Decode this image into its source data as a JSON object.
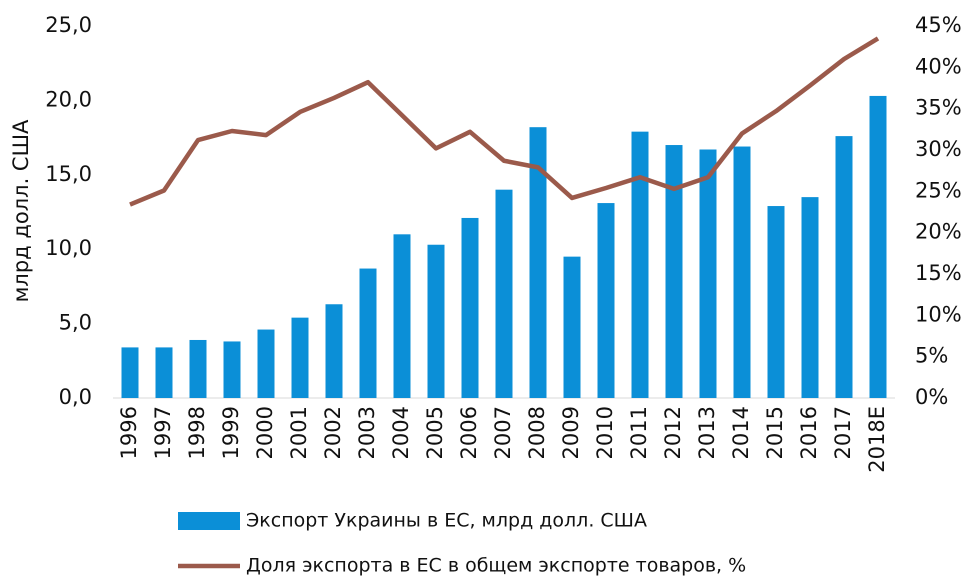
{
  "chart_data": {
    "type": "bar",
    "ylabel": "млрд долл. США",
    "categories": [
      "1996",
      "1997",
      "1998",
      "1999",
      "2000",
      "2001",
      "2002",
      "2003",
      "2004",
      "2005",
      "2006",
      "2007",
      "2008",
      "2009",
      "2010",
      "2011",
      "2012",
      "2013",
      "2014",
      "2015",
      "2016",
      "2017",
      "2018E"
    ],
    "series": [
      {
        "name": "Экспорт Украины в ЕС, млрд долл. США",
        "type": "bar",
        "color": "#0b8fd7",
        "values": [
          3.4,
          3.4,
          3.9,
          3.8,
          4.6,
          5.4,
          6.3,
          8.7,
          11.0,
          10.3,
          12.1,
          14.0,
          18.2,
          9.5,
          13.1,
          17.9,
          17.0,
          16.7,
          16.9,
          12.9,
          13.5,
          17.6,
          20.3
        ]
      },
      {
        "name": "Доля экспорта в ЕС в общем экспорте товаров, %",
        "type": "line",
        "axis": "y2",
        "color": "#9b5a4b",
        "values": [
          23.4,
          25.1,
          31.2,
          32.3,
          31.8,
          34.6,
          36.3,
          38.2,
          34.2,
          30.2,
          32.2,
          28.7,
          27.9,
          24.2,
          25.4,
          26.7,
          25.3,
          26.7,
          32.0,
          34.7,
          37.8,
          41.0,
          43.5
        ]
      }
    ],
    "ylim": [
      0,
      25
    ],
    "yticks": [
      {
        "value": 0,
        "label": "0,0"
      },
      {
        "value": 5,
        "label": "5,0"
      },
      {
        "value": 10,
        "label": "10,0"
      },
      {
        "value": 15,
        "label": "15,0"
      },
      {
        "value": 20,
        "label": "20,0"
      },
      {
        "value": 25,
        "label": "25,0"
      }
    ],
    "y2lim": [
      0,
      45
    ],
    "y2ticks": [
      {
        "value": 0,
        "label": "0%"
      },
      {
        "value": 5,
        "label": "5%"
      },
      {
        "value": 10,
        "label": "10%"
      },
      {
        "value": 15,
        "label": "15%"
      },
      {
        "value": 20,
        "label": "20%"
      },
      {
        "value": 25,
        "label": "25%"
      },
      {
        "value": 30,
        "label": "30%"
      },
      {
        "value": 35,
        "label": "35%"
      },
      {
        "value": 40,
        "label": "40%"
      },
      {
        "value": 45,
        "label": "45%"
      }
    ],
    "legend": "bottom"
  }
}
